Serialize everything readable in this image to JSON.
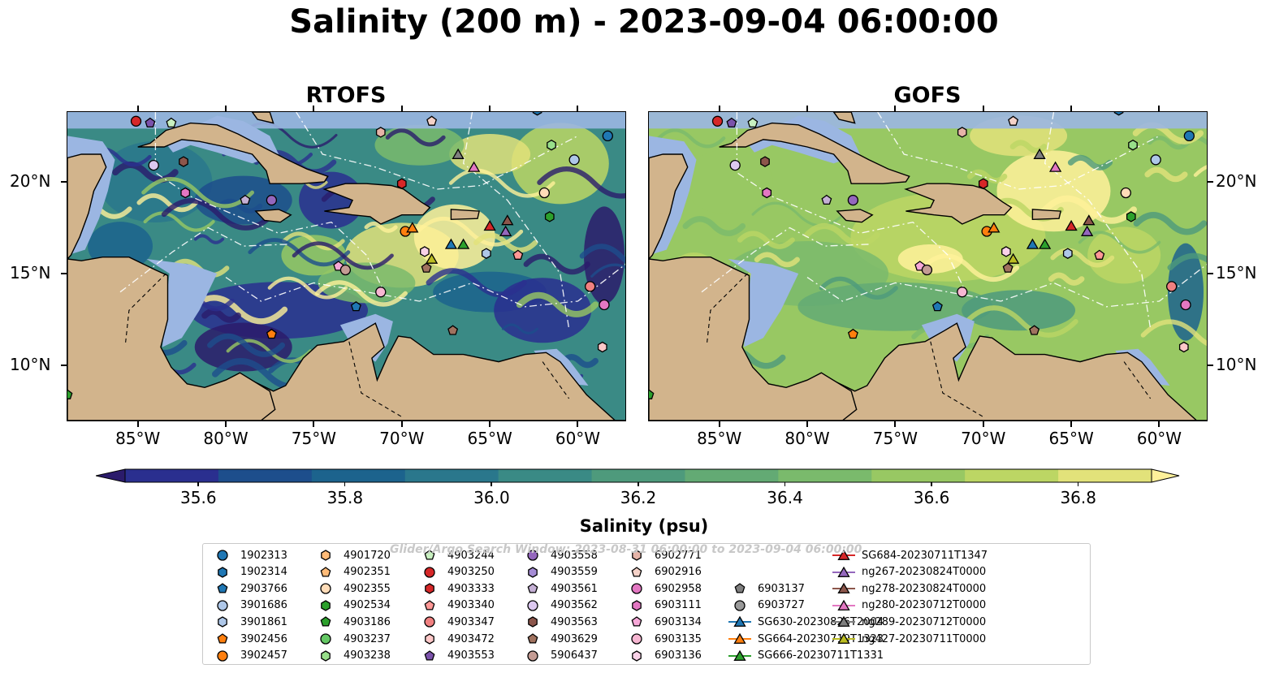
{
  "title": "Salinity (200 m) - 2023-09-04 06:00:00",
  "panels": [
    {
      "title": "RTOFS",
      "style": "rtofs"
    },
    {
      "title": "GOFS",
      "style": "gofs"
    }
  ],
  "x_ticks": [
    "85°W",
    "80°W",
    "75°W",
    "70°W",
    "65°W",
    "60°W"
  ],
  "y_ticks": [
    "20°N",
    "15°N",
    "10°N"
  ],
  "colorbar": {
    "label": "Salinity (psu)",
    "ticks": [
      "35.6",
      "35.8",
      "36.0",
      "36.2",
      "36.4",
      "36.6",
      "36.8"
    ],
    "colors": [
      "#2b1b6b",
      "#2a2f8f",
      "#1d4e8c",
      "#1c638d",
      "#2a778c",
      "#3a8a85",
      "#4e9a7c",
      "#63aa74",
      "#7aba6c",
      "#98c863",
      "#bcd664",
      "#e2e27a",
      "#fff19a"
    ]
  },
  "legend_watermark": "Glider/Argo Search Window: 2023-08-31 06:00:00 to 2023-09-04 06:00:00",
  "legend": [
    {
      "label": "1902313",
      "marker": "circle",
      "color": "#1f77b4"
    },
    {
      "label": "1902314",
      "marker": "hexagon",
      "color": "#1f77b4"
    },
    {
      "label": "2903766",
      "marker": "pentagon",
      "color": "#1f77b4"
    },
    {
      "label": "3901686",
      "marker": "circle",
      "color": "#aec7e8"
    },
    {
      "label": "3901861",
      "marker": "hexagon",
      "color": "#aec7e8"
    },
    {
      "label": "3902456",
      "marker": "pentagon",
      "color": "#ff7f0e"
    },
    {
      "label": "3902457",
      "marker": "circle",
      "color": "#ff7f0e"
    },
    {
      "label": "4901720",
      "marker": "hexagon",
      "color": "#ffbb78"
    },
    {
      "label": "4902351",
      "marker": "pentagon",
      "color": "#ffbb78"
    },
    {
      "label": "4902355",
      "marker": "circle",
      "color": "#ffdcb8"
    },
    {
      "label": "4902534",
      "marker": "hexagon",
      "color": "#2ca02c"
    },
    {
      "label": "4903186",
      "marker": "pentagon",
      "color": "#2ca02c"
    },
    {
      "label": "4903237",
      "marker": "circle",
      "color": "#64c864"
    },
    {
      "label": "4903238",
      "marker": "hexagon",
      "color": "#98df8a"
    },
    {
      "label": "4903244",
      "marker": "pentagon",
      "color": "#c8f0c0"
    },
    {
      "label": "4903250",
      "marker": "circle",
      "color": "#d62728"
    },
    {
      "label": "4903333",
      "marker": "hexagon",
      "color": "#d62728"
    },
    {
      "label": "4903340",
      "marker": "pentagon",
      "color": "#ff9896"
    },
    {
      "label": "4903347",
      "marker": "circle",
      "color": "#f08080"
    },
    {
      "label": "4903472",
      "marker": "hexagon",
      "color": "#ffc8c8"
    },
    {
      "label": "4903553",
      "marker": "pentagon",
      "color": "#7b52ab"
    },
    {
      "label": "4903558",
      "marker": "circle",
      "color": "#9467bd"
    },
    {
      "label": "4903559",
      "marker": "hexagon",
      "color": "#a58cd5"
    },
    {
      "label": "4903561",
      "marker": "pentagon",
      "color": "#c5b0d5"
    },
    {
      "label": "4903562",
      "marker": "circle",
      "color": "#dcc8f0"
    },
    {
      "label": "4903563",
      "marker": "hexagon",
      "color": "#8c564b"
    },
    {
      "label": "4903629",
      "marker": "pentagon",
      "color": "#a0725f"
    },
    {
      "label": "5906437",
      "marker": "circle",
      "color": "#c49c94"
    },
    {
      "label": "6902771",
      "marker": "hexagon",
      "color": "#e6b4a8"
    },
    {
      "label": "6902916",
      "marker": "pentagon",
      "color": "#f5d2c8"
    },
    {
      "label": "6902958",
      "marker": "circle",
      "color": "#e377c2"
    },
    {
      "label": "6903111",
      "marker": "hexagon",
      "color": "#e377c2"
    },
    {
      "label": "6903134",
      "marker": "pentagon",
      "color": "#f7a8d8"
    },
    {
      "label": "6903135",
      "marker": "circle",
      "color": "#f7b6d2"
    },
    {
      "label": "6903136",
      "marker": "hexagon",
      "color": "#fad2e8"
    },
    {
      "label": "6903137",
      "marker": "pentagon",
      "color": "#7f7f7f"
    },
    {
      "label": "6903727",
      "marker": "circle",
      "color": "#9a9a9a"
    },
    {
      "label": "SG630-20230826T2004",
      "marker": "glider",
      "color": "#1f77b4"
    },
    {
      "label": "SG664-20230719T1323",
      "marker": "glider",
      "color": "#ff7f0e"
    },
    {
      "label": "SG666-20230711T1331",
      "marker": "glider",
      "color": "#2ca02c"
    },
    {
      "label": "SG684-20230711T1347",
      "marker": "glider",
      "color": "#d62728"
    },
    {
      "label": "ng267-20230824T0000",
      "marker": "glider",
      "color": "#9467bd"
    },
    {
      "label": "ng278-20230824T0000",
      "marker": "glider",
      "color": "#8c564b"
    },
    {
      "label": "ng280-20230712T0000",
      "marker": "glider",
      "color": "#e377c2"
    },
    {
      "label": "ng289-20230712T0000",
      "marker": "glider",
      "color": "#7f7f7f"
    },
    {
      "label": "ng427-20230711T0000",
      "marker": "glider",
      "color": "#bcbd22"
    }
  ],
  "map_markers": [
    {
      "lon": -85.1,
      "lat": 23.3,
      "ref": "4903250"
    },
    {
      "lon": -84.3,
      "lat": 23.2,
      "ref": "4903553"
    },
    {
      "lon": -83.1,
      "lat": 23.2,
      "ref": "4903244"
    },
    {
      "lon": -84.1,
      "lat": 20.9,
      "ref": "4903562"
    },
    {
      "lon": -82.4,
      "lat": 21.1,
      "ref": "4903563"
    },
    {
      "lon": -82.3,
      "lat": 19.4,
      "ref": "6903111"
    },
    {
      "lon": -78.9,
      "lat": 19.0,
      "ref": "4903561"
    },
    {
      "lon": -77.4,
      "lat": 19.0,
      "ref": "4903558"
    },
    {
      "lon": -71.2,
      "lat": 22.7,
      "ref": "6902771"
    },
    {
      "lon": -68.3,
      "lat": 23.3,
      "ref": "6902916"
    },
    {
      "lon": -62.3,
      "lat": 23.9,
      "ref": "1902314"
    },
    {
      "lon": -58.3,
      "lat": 22.5,
      "ref": "1902313"
    },
    {
      "lon": -61.5,
      "lat": 22.0,
      "ref": "4903238"
    },
    {
      "lon": -60.2,
      "lat": 21.2,
      "ref": "3901686"
    },
    {
      "lon": -70.0,
      "lat": 19.9,
      "ref": "4903333"
    },
    {
      "lon": -61.9,
      "lat": 19.4,
      "ref": "4902355"
    },
    {
      "lon": -61.6,
      "lat": 18.1,
      "ref": "4902534"
    },
    {
      "lon": -69.8,
      "lat": 17.3,
      "ref": "3902457"
    },
    {
      "lon": -69.4,
      "lat": 17.5,
      "ref": "SG664-20230719T1323"
    },
    {
      "lon": -65.0,
      "lat": 17.6,
      "ref": "SG684-20230711T1347"
    },
    {
      "lon": -64.0,
      "lat": 17.9,
      "ref": "ng278-20230824T0000"
    },
    {
      "lon": -64.1,
      "lat": 17.3,
      "ref": "ng267-20230824T0000"
    },
    {
      "lon": -66.8,
      "lat": 21.5,
      "ref": "ng289-20230712T0000"
    },
    {
      "lon": -65.9,
      "lat": 20.8,
      "ref": "ng280-20230712T0000"
    },
    {
      "lon": -67.2,
      "lat": 16.6,
      "ref": "SG630-20230826T2004"
    },
    {
      "lon": -66.5,
      "lat": 16.6,
      "ref": "SG666-20230711T1331"
    },
    {
      "lon": -65.2,
      "lat": 16.1,
      "ref": "3901861"
    },
    {
      "lon": -63.4,
      "lat": 16.0,
      "ref": "4903340"
    },
    {
      "lon": -68.3,
      "lat": 15.8,
      "ref": "ng427-20230711T0000"
    },
    {
      "lon": -68.7,
      "lat": 16.2,
      "ref": "6903136"
    },
    {
      "lon": -68.6,
      "lat": 15.3,
      "ref": "4903629"
    },
    {
      "lon": -73.6,
      "lat": 15.4,
      "ref": "6903134"
    },
    {
      "lon": -73.2,
      "lat": 15.2,
      "ref": "5906437"
    },
    {
      "lon": -71.2,
      "lat": 14.0,
      "ref": "6903135"
    },
    {
      "lon": -72.6,
      "lat": 13.2,
      "ref": "2903766"
    },
    {
      "lon": -59.3,
      "lat": 14.3,
      "ref": "4903347"
    },
    {
      "lon": -58.5,
      "lat": 13.3,
      "ref": "6902958"
    },
    {
      "lon": -58.6,
      "lat": 11.0,
      "ref": "4903472"
    },
    {
      "lon": -77.4,
      "lat": 11.7,
      "ref": "3902456"
    },
    {
      "lon": -67.1,
      "lat": 11.9,
      "ref": "4903629"
    },
    {
      "lon": -89.0,
      "lat": 8.4,
      "ref": "4903186"
    }
  ]
}
